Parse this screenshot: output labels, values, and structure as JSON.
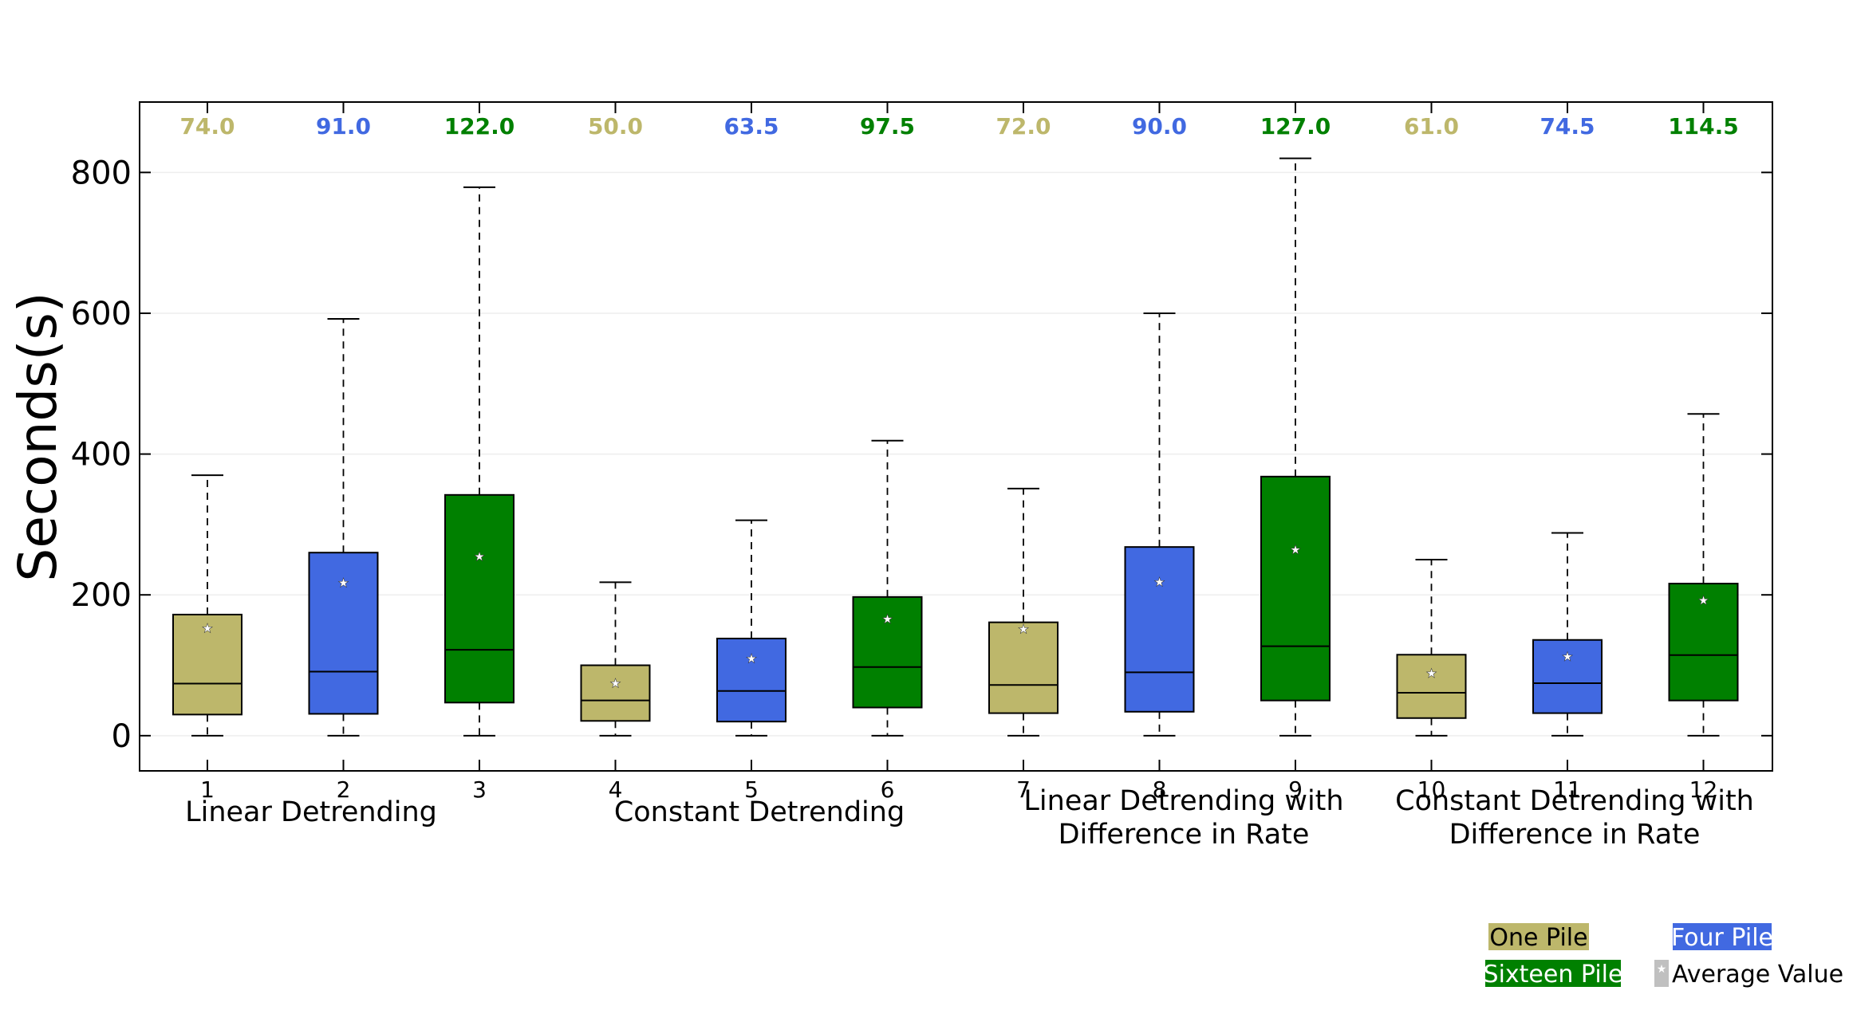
{
  "chart_data": {
    "type": "box",
    "ylabel": "Seconds(s)",
    "ylim": [
      -50,
      900
    ],
    "yticks": [
      0,
      200,
      400,
      600,
      800
    ],
    "grid": "horizontal",
    "colors": {
      "one_pile": "#bdb76b",
      "four_pile": "#4169e1",
      "sixteen_pile": "#008000",
      "average_marker": "#c0c0c0"
    },
    "boxes": [
      {
        "label": "1",
        "series": "One Pile",
        "median_label": "74.0",
        "whisker_low": 0,
        "q1": 30,
        "median": 74,
        "q3": 172,
        "whisker_high": 370,
        "mean": 153
      },
      {
        "label": "2",
        "series": "Four Pile",
        "median_label": "91.0",
        "whisker_low": 0,
        "q1": 31,
        "median": 91,
        "q3": 260,
        "whisker_high": 592,
        "mean": 218
      },
      {
        "label": "3",
        "series": "Sixteen Pile",
        "median_label": "122.0",
        "whisker_low": 0,
        "q1": 47,
        "median": 122,
        "q3": 342,
        "whisker_high": 779,
        "mean": 255
      },
      {
        "label": "4",
        "series": "One Pile",
        "median_label": "50.0",
        "whisker_low": 0,
        "q1": 21,
        "median": 50,
        "q3": 100,
        "whisker_high": 218,
        "mean": 75
      },
      {
        "label": "5",
        "series": "Four Pile",
        "median_label": "63.5",
        "whisker_low": 0,
        "q1": 20,
        "median": 63.5,
        "q3": 138,
        "whisker_high": 306,
        "mean": 110
      },
      {
        "label": "6",
        "series": "Sixteen Pile",
        "median_label": "97.5",
        "whisker_low": 0,
        "q1": 40,
        "median": 97.5,
        "q3": 197,
        "whisker_high": 419,
        "mean": 166
      },
      {
        "label": "7",
        "series": "One Pile",
        "median_label": "72.0",
        "whisker_low": 0,
        "q1": 32,
        "median": 72,
        "q3": 161,
        "whisker_high": 351,
        "mean": 152
      },
      {
        "label": "8",
        "series": "Four Pile",
        "median_label": "90.0",
        "whisker_low": 0,
        "q1": 34,
        "median": 90,
        "q3": 268,
        "whisker_high": 600,
        "mean": 219
      },
      {
        "label": "9",
        "series": "Sixteen Pile",
        "median_label": "127.0",
        "whisker_low": 0,
        "q1": 50,
        "median": 127,
        "q3": 368,
        "whisker_high": 820,
        "mean": 265
      },
      {
        "label": "10",
        "series": "One Pile",
        "median_label": "61.0",
        "whisker_low": 0,
        "q1": 25,
        "median": 61,
        "q3": 115,
        "whisker_high": 250,
        "mean": 89
      },
      {
        "label": "11",
        "series": "Four Pile",
        "median_label": "74.5",
        "whisker_low": 0,
        "q1": 32,
        "median": 74.5,
        "q3": 136,
        "whisker_high": 288,
        "mean": 113
      },
      {
        "label": "12",
        "series": "Sixteen Pile",
        "median_label": "114.5",
        "whisker_low": 0,
        "q1": 50,
        "median": 114.5,
        "q3": 216,
        "whisker_high": 457,
        "mean": 193
      }
    ],
    "groups": [
      {
        "lines": [
          "Linear Detrending"
        ],
        "boxes": [
          1,
          3
        ]
      },
      {
        "lines": [
          "Constant Detrending"
        ],
        "boxes": [
          4,
          6
        ]
      },
      {
        "lines": [
          "Linear Detrending with",
          "Difference in Rate"
        ],
        "boxes": [
          7,
          9
        ]
      },
      {
        "lines": [
          "Constant Detrending with",
          "Difference in Rate"
        ],
        "boxes": [
          10,
          12
        ]
      }
    ],
    "legend": [
      {
        "label": "One Pile",
        "color": "#bdb76b"
      },
      {
        "label": "Four Pile",
        "color": "#4169e1"
      },
      {
        "label": "Sixteen Pile",
        "color": "#008000"
      },
      {
        "label": "Average Value",
        "color": "#c0c0c0"
      }
    ],
    "legend_position": "bottom-right"
  }
}
